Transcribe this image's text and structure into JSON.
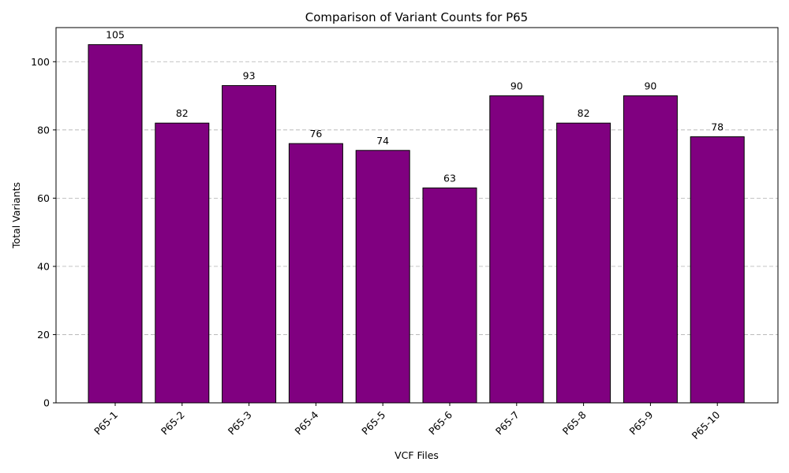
{
  "chart_data": {
    "type": "bar",
    "title": "Comparison of Variant Counts for P65",
    "xlabel": "VCF Files",
    "ylabel": "Total Variants",
    "categories": [
      "P65-1",
      "P65-2",
      "P65-3",
      "P65-4",
      "P65-5",
      "P65-6",
      "P65-7",
      "P65-8",
      "P65-9",
      "P65-10"
    ],
    "values": [
      105,
      82,
      93,
      76,
      74,
      63,
      90,
      82,
      90,
      78
    ],
    "ylim": [
      0,
      110
    ],
    "yticks": [
      0,
      20,
      40,
      60,
      80,
      100
    ],
    "grid": "y-dashed",
    "legend": "none",
    "bar_color": "#800080",
    "bar_edge_color": "#000000"
  }
}
